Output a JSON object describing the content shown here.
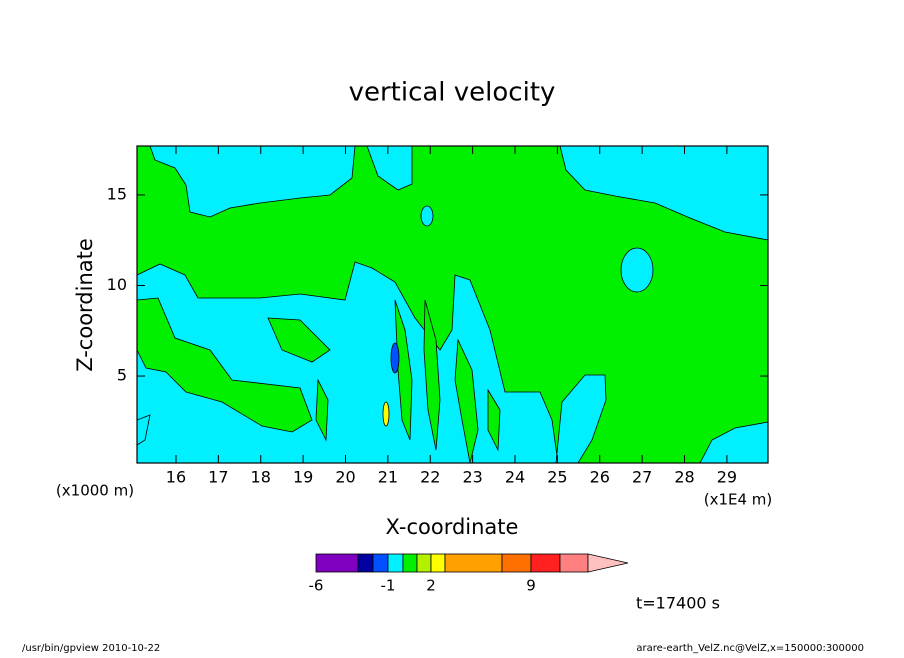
{
  "chart_data": {
    "type": "contour",
    "title": "vertical velocity",
    "xlabel": "X-coordinate",
    "ylabel": "Z-coordinate",
    "x_unit_left": "(x1000 m)",
    "x_unit_right": "(x1E4 m)",
    "xlim": [
      15.08,
      29.97
    ],
    "ylim": [
      0.2,
      17.7
    ],
    "xticks": [
      16,
      17,
      18,
      19,
      20,
      21,
      22,
      23,
      24,
      25,
      26,
      27,
      28,
      29
    ],
    "yticks": [
      5,
      10,
      15
    ],
    "colorbar": {
      "colors": [
        "#8000c0",
        "#0000a0",
        "#0050ff",
        "#00f0ff",
        "#00f000",
        "#b4f000",
        "#ffff00",
        "#ffa000",
        "#ff7000",
        "#ff2020",
        "#ff8080",
        "#ffc0c0"
      ],
      "ticks": [
        -6,
        -1,
        2,
        9
      ]
    },
    "annotation": "t=17400 s"
  },
  "footer": {
    "left": "/usr/bin/gpview  2010-10-22",
    "right": "arare-earth_VelZ.nc@VelZ,x=150000:300000"
  }
}
